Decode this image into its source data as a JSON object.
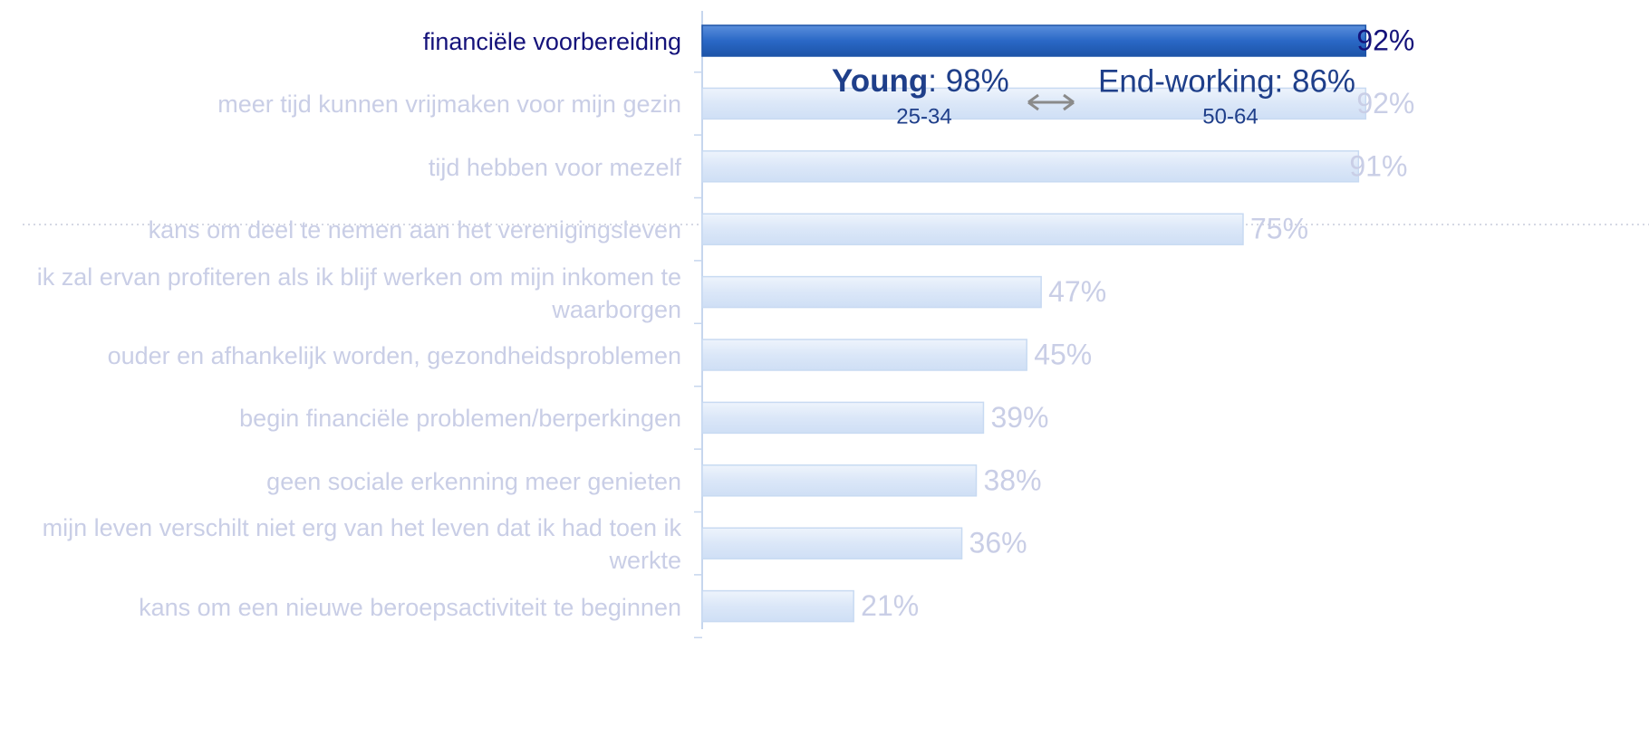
{
  "chart_data": {
    "type": "barh",
    "categories": [
      "financiële voorbereiding",
      "meer tijd kunnen vrijmaken voor mijn gezin",
      "tijd hebben voor mezelf",
      "kans om deel te nemen aan het verenigingsleven",
      "ik zal ervan profiteren als ik blijf werken om mijn inkomen te\nwaarborgen",
      "ouder en afhankelijk worden, gezondheidsproblemen",
      "begin financiële problemen/berperkingen",
      "geen sociale erkenning meer genieten",
      "mijn leven verschilt niet erg van het leven dat ik had toen ik\nwerkte",
      "kans om een nieuwe beroepsactiviteit te beginnen"
    ],
    "values": [
      92,
      92,
      91,
      75,
      47,
      45,
      39,
      38,
      36,
      21
    ],
    "value_labels": [
      "92%",
      "92%",
      "91%",
      "75%",
      "47%",
      "45%",
      "39%",
      "38%",
      "36%",
      "21%"
    ],
    "xlim": [
      0,
      100
    ],
    "color": "#dbe7f8",
    "highlight": 0,
    "highlight_color": "#2a68c6",
    "annotations": [
      {
        "label": "Young",
        "text": ": 98%",
        "sub": "25-34"
      },
      {
        "text": "End-working: 86%",
        "sub": "50-64"
      }
    ]
  }
}
